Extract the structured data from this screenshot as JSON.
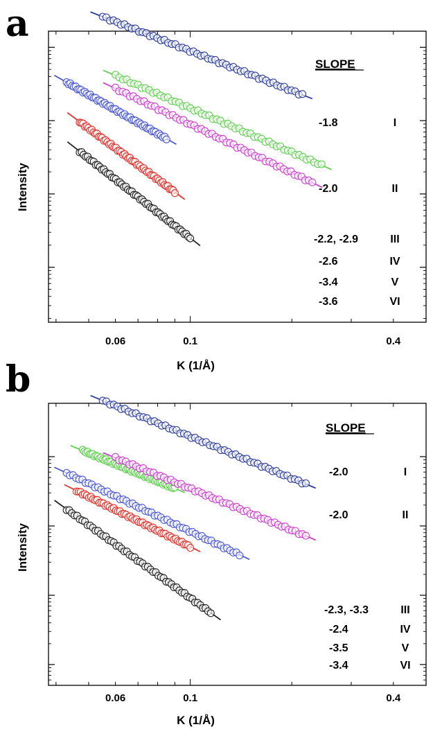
{
  "chart_data": [
    {
      "panel": "a",
      "type": "scatter",
      "xlabel": "K (1/Å)",
      "ylabel": "Intensity",
      "xscale": "log",
      "yscale": "log",
      "xlim": [
        0.038,
        0.5
      ],
      "x_ticks": [
        "0.06",
        "0.1",
        "0.4"
      ],
      "legend_header": "SLOPE",
      "series": [
        {
          "label": "I",
          "slope": "-1.8",
          "color": "#2b3d9c",
          "xrange": [
            0.055,
            0.215
          ],
          "offset": 0.95
        },
        {
          "label": "II",
          "slope": "-2.0",
          "color": "#5fcf4f",
          "xrange": [
            0.06,
            0.245
          ],
          "offset": 0.17
        },
        {
          "label": "III",
          "slope": "-2.2, -2.9",
          "color": "#cc3fcf",
          "xrange": [
            0.06,
            0.23
          ],
          "offset": -0.05
        },
        {
          "label": "IV",
          "slope": "-2.6",
          "color": "#4a58d4",
          "xrange": [
            0.043,
            0.085
          ],
          "offset": -0.43
        },
        {
          "label": "V",
          "slope": "-3.4",
          "color": "#e0332d",
          "xrange": [
            0.047,
            0.09
          ],
          "offset": -1.13
        },
        {
          "label": "VI",
          "slope": "-3.6",
          "color": "#222222",
          "xrange": [
            0.047,
            0.1
          ],
          "offset": -1.6
        }
      ]
    },
    {
      "panel": "b",
      "type": "scatter",
      "xlabel": "K (1/Å)",
      "ylabel": "Intensity",
      "xscale": "log",
      "yscale": "log",
      "xlim": [
        0.038,
        0.5
      ],
      "x_ticks": [
        "0.06",
        "0.1",
        "0.4"
      ],
      "legend_header": "SLOPE",
      "series": [
        {
          "label": "I",
          "slope": "-2.0",
          "color": "#2b3d9c",
          "xrange": [
            0.055,
            0.22
          ],
          "offset": 0.29
        },
        {
          "label": "",
          "slope": "",
          "color": "#5fcf4f",
          "xrange": [
            0.048,
            0.09
          ],
          "offset": -0.55
        },
        {
          "label": "II",
          "slope": "-2.0",
          "color": "#cc3fcf",
          "xrange": [
            0.06,
            0.22
          ],
          "offset": -0.46
        },
        {
          "label": "III",
          "slope": "-2.3, -3.3",
          "color": "#4a58d4",
          "xrange": [
            0.043,
            0.14
          ],
          "offset": -1.08
        },
        {
          "label": "IV",
          "slope": "-2.4",
          "color": "#e0332d",
          "xrange": [
            0.046,
            0.1
          ],
          "offset": -1.3
        },
        {
          "label": "V",
          "slope": "-3.5",
          "color": "#222222",
          "xrange": [
            0.043,
            0.115
          ],
          "offset": -2.04
        }
      ],
      "extra_legend": [
        {
          "label": "VI",
          "slope": "-3.4"
        }
      ]
    }
  ]
}
